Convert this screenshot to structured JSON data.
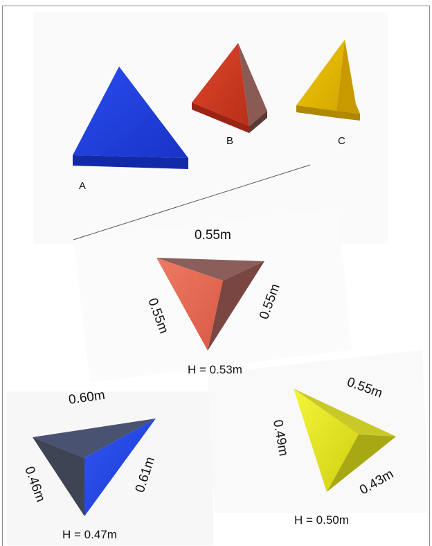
{
  "top_group": {
    "labels": [
      "A",
      "B",
      "C"
    ]
  },
  "red_piece": {
    "top_edge": "0.55m",
    "left_edge": "0.55m",
    "right_edge": "0.55m",
    "height": "H = 0.53m"
  },
  "blue_piece": {
    "top_edge": "0.60m",
    "left_edge": "0.46m",
    "right_edge": "0.61m",
    "height": "H = 0.47m"
  },
  "yellow_piece": {
    "top_edge": "0.55m",
    "left_edge": "0.49m",
    "right_edge": "0.43m",
    "height": "H = 0.50m"
  },
  "colors": {
    "blue": "#1f3fd6",
    "red": "#c8371f",
    "yellow_gold": "#e0b400",
    "salmon": "#e06a55",
    "lime_yellow": "#e6e61e"
  }
}
